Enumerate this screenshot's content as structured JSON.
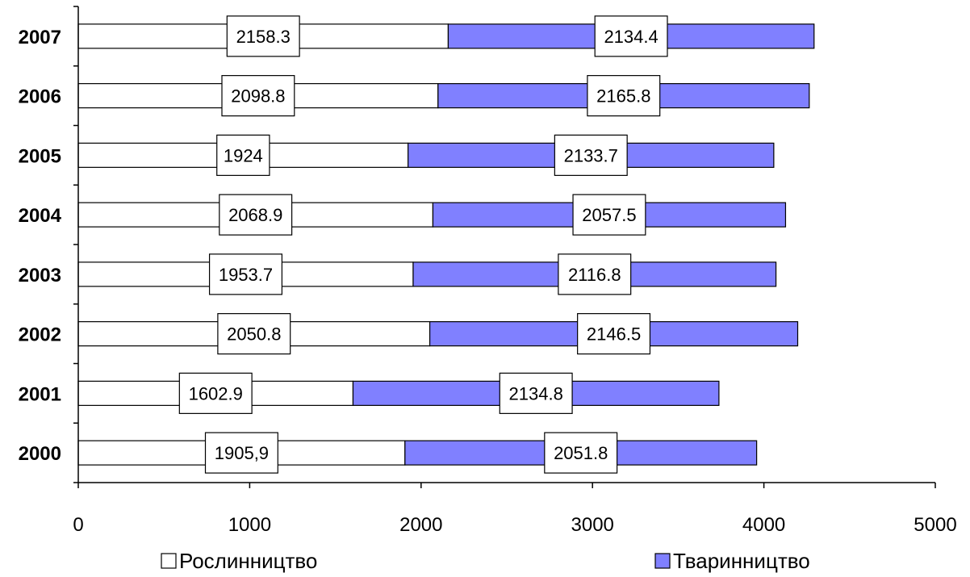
{
  "chart_data": {
    "type": "bar",
    "orientation": "horizontal",
    "stacked": true,
    "categories": [
      "2000",
      "2001",
      "2002",
      "2003",
      "2004",
      "2005",
      "2006",
      "2007"
    ],
    "series": [
      {
        "name": "Рослинництво",
        "color": "#ffffff",
        "values": [
          1905.9,
          1602.9,
          2050.8,
          1953.7,
          2068.9,
          1924,
          2098.8,
          2158.3
        ],
        "labels": [
          "1905,9",
          "1602.9",
          "2050.8",
          "1953.7",
          "2068.9",
          "1924",
          "2098.8",
          "2158.3"
        ]
      },
      {
        "name": "Тваринництво",
        "color": "#8080ff",
        "values": [
          2051.8,
          2134.8,
          2146.5,
          2116.8,
          2057.5,
          2133.7,
          2165.8,
          2134.4
        ],
        "labels": [
          "2051.8",
          "2134.8",
          "2146.5",
          "2116.8",
          "2057.5",
          "2133.7",
          "2165.8",
          "2134.4"
        ]
      }
    ],
    "xlim": [
      0,
      5000
    ],
    "xticks": [
      0,
      1000,
      2000,
      3000,
      4000,
      5000
    ],
    "xtick_labels": [
      "0",
      "1000",
      "2000",
      "3000",
      "4000",
      "5000"
    ],
    "grid": false,
    "legend_position": "bottom"
  }
}
